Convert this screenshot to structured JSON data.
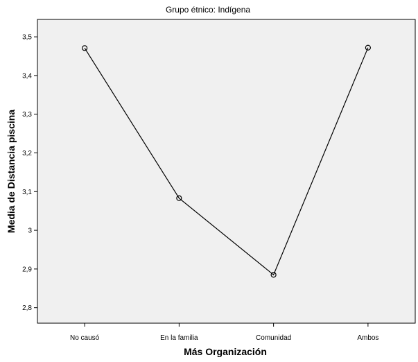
{
  "chart_data": {
    "type": "line",
    "title": "Grupo étnico: Indígena",
    "xlabel": "Más Organización",
    "ylabel": "Media de Distancia piscina",
    "categories": [
      "No causó",
      "En la familia",
      "Comunidad",
      "Ambos"
    ],
    "series": [
      {
        "values": [
          3.471,
          3.083,
          2.885,
          3.472
        ]
      }
    ],
    "ylim": [
      2.76,
      3.545
    ],
    "yticks": [
      2.8,
      2.9,
      3.0,
      3.1,
      3.2,
      3.3,
      3.4,
      3.5
    ],
    "ytick_labels": [
      "2,8",
      "2,9",
      "3",
      "3,1",
      "3,2",
      "3,3",
      "3,4",
      "3,5"
    ],
    "grid": false,
    "legend": "none",
    "colors": {
      "plot_background": "#f0f0f0",
      "line": "#000000"
    }
  }
}
